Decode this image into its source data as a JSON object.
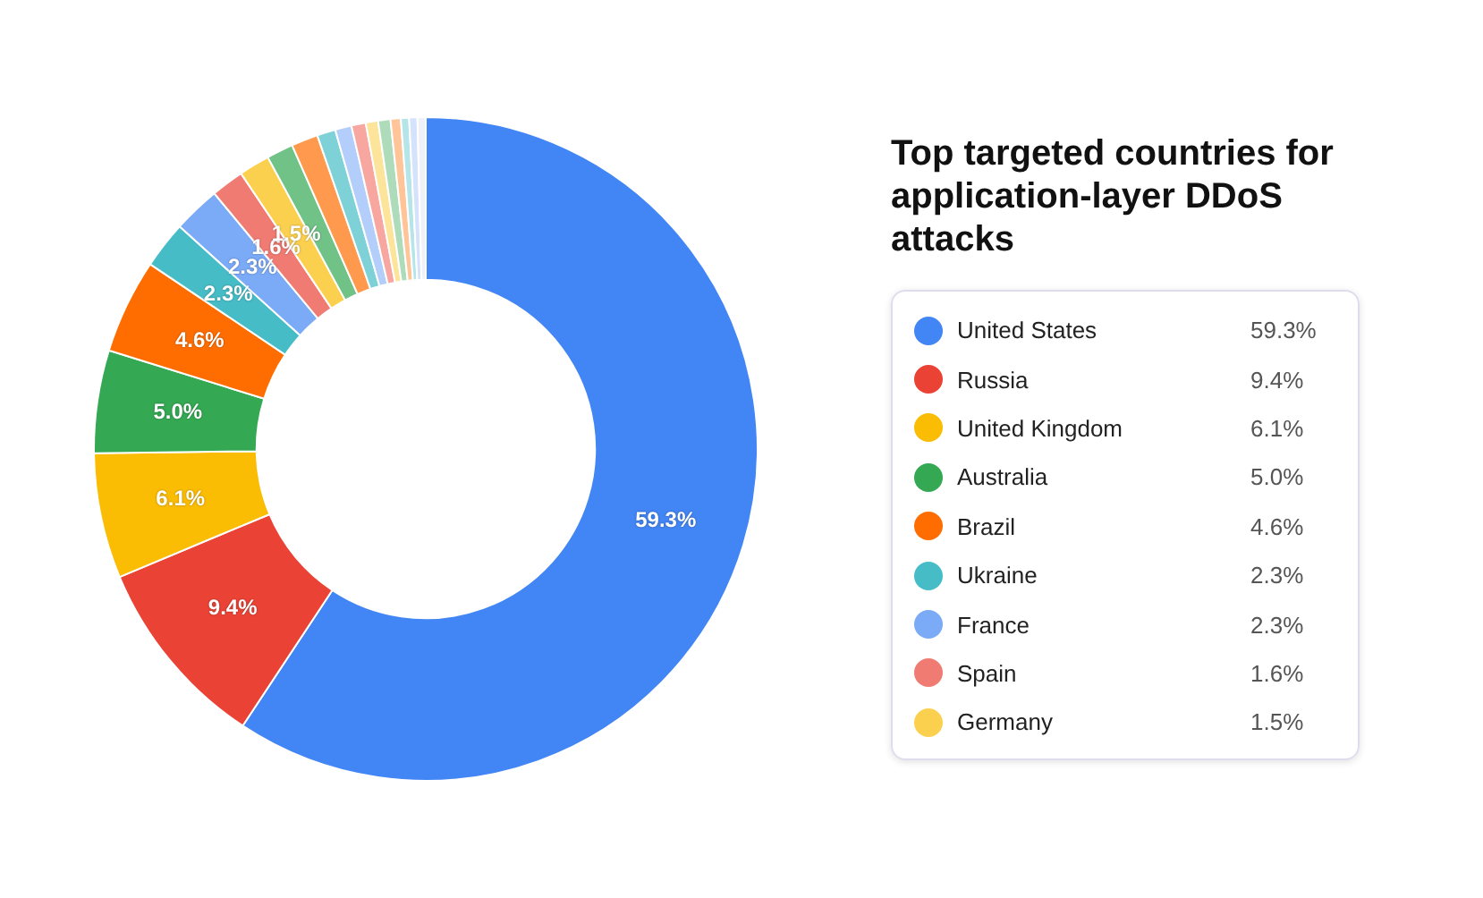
{
  "chart_data": {
    "type": "donut",
    "title": "Top targeted countries for application-layer DDoS attacks",
    "categories": [
      "United States",
      "Russia",
      "United Kingdom",
      "Australia",
      "Brazil",
      "Ukraine",
      "France",
      "Spain",
      "Germany",
      null,
      null,
      null,
      null,
      null,
      null,
      null,
      null,
      null,
      null,
      null
    ],
    "values": [
      59.3,
      9.4,
      6.1,
      5.0,
      4.6,
      2.3,
      2.3,
      1.6,
      1.5,
      1.3,
      1.3,
      0.9,
      0.8,
      0.7,
      0.6,
      0.6,
      0.5,
      0.4,
      0.4,
      0.4
    ],
    "colors": [
      "#4285f4",
      "#ea4335",
      "#fbbc04",
      "#34a853",
      "#ff6d01",
      "#46bdc6",
      "#7baaf7",
      "#f07b72",
      "#fcd04f",
      "#71c287",
      "#ff994d",
      "#7ed1d7",
      "#b3cefb",
      "#f7a7a0",
      "#fde49b",
      "#aedcba",
      "#ffc599",
      "#b5e5e8",
      "#d4e2fc",
      "#eef2f8"
    ],
    "value_labels": [
      "59.3%",
      "9.4%",
      "6.1%",
      "5.0%",
      "4.6%",
      "2.3%",
      "2.3%",
      "1.6%",
      "1.5%",
      null,
      null,
      null,
      null,
      null,
      null,
      null,
      null,
      null,
      null,
      null
    ],
    "legend": "right"
  }
}
